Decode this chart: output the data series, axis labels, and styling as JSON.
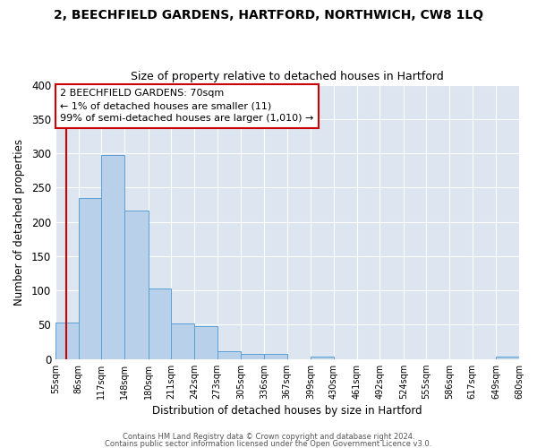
{
  "title": "2, BEECHFIELD GARDENS, HARTFORD, NORTHWICH, CW8 1LQ",
  "subtitle": "Size of property relative to detached houses in Hartford",
  "xlabel": "Distribution of detached houses by size in Hartford",
  "ylabel": "Number of detached properties",
  "bin_labels": [
    "55sqm",
    "86sqm",
    "117sqm",
    "148sqm",
    "180sqm",
    "211sqm",
    "242sqm",
    "273sqm",
    "305sqm",
    "336sqm",
    "367sqm",
    "399sqm",
    "430sqm",
    "461sqm",
    "492sqm",
    "524sqm",
    "555sqm",
    "586sqm",
    "617sqm",
    "649sqm",
    "680sqm"
  ],
  "bar_heights": [
    53,
    235,
    298,
    217,
    103,
    52,
    48,
    11,
    7,
    7,
    0,
    4,
    0,
    0,
    0,
    0,
    0,
    0,
    0,
    4
  ],
  "bar_color": "#b8d0ea",
  "bar_edge_color": "#5a9fd4",
  "background_color": "#dde6f0",
  "grid_color": "#ffffff",
  "ylim": [
    0,
    400
  ],
  "yticks": [
    0,
    50,
    100,
    150,
    200,
    250,
    300,
    350,
    400
  ],
  "property_size": 70,
  "property_line_color": "#cc0000",
  "annotation_line1": "2 BEECHFIELD GARDENS: 70sqm",
  "annotation_line2": "← 1% of detached houses are smaller (11)",
  "annotation_line3": "99% of semi-detached houses are larger (1,010) →",
  "footer_line1": "Contains HM Land Registry data © Crown copyright and database right 2024.",
  "footer_line2": "Contains public sector information licensed under the Open Government Licence v3.0."
}
